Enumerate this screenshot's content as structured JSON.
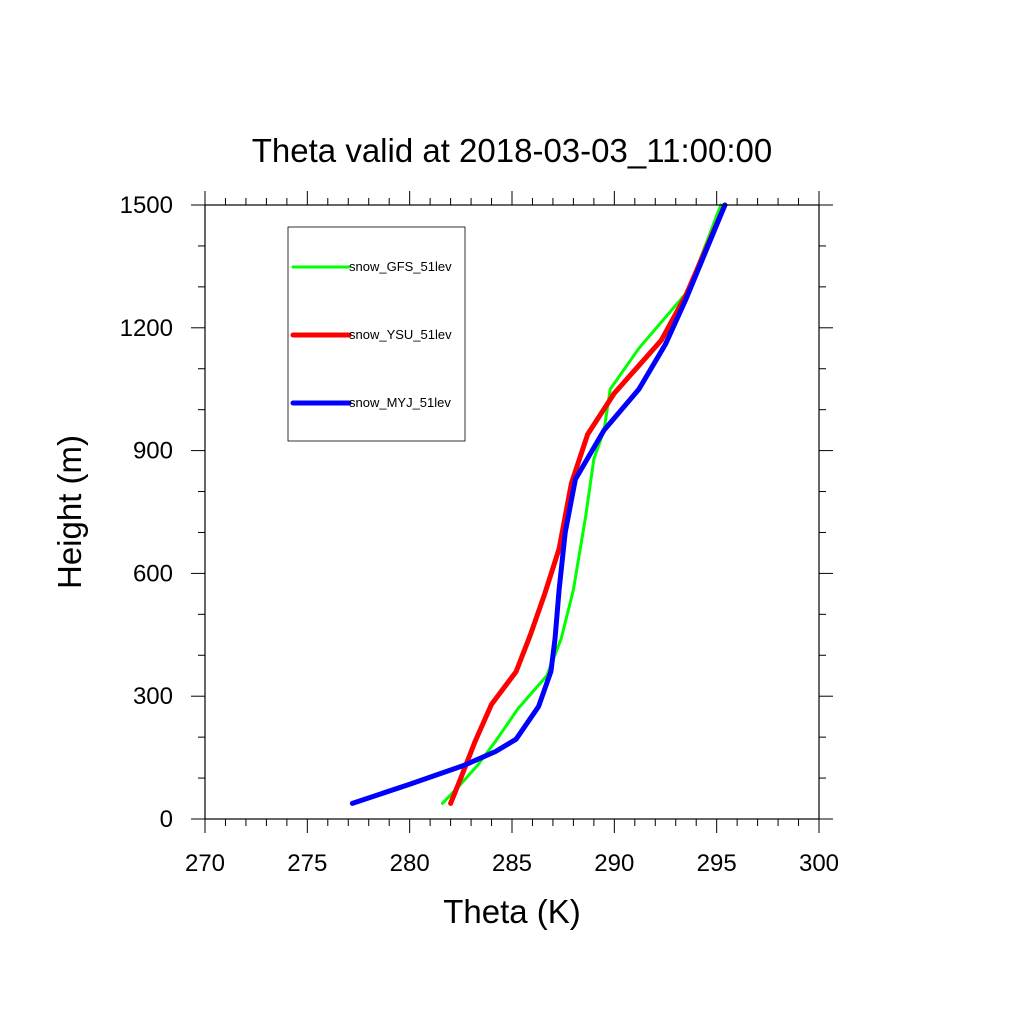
{
  "chart_data": {
    "type": "line",
    "title": "Theta valid at 2018-03-03_11:00:00",
    "xlabel": "Theta (K)",
    "ylabel": "Height (m)",
    "xlim": [
      270,
      300
    ],
    "ylim": [
      0,
      1500
    ],
    "x_ticks": [
      "270",
      "275",
      "280",
      "285",
      "290",
      "295",
      "300"
    ],
    "y_ticks": [
      "0",
      "300",
      "600",
      "900",
      "1200",
      "1500"
    ],
    "grid": false,
    "legend_position": "top-left",
    "series": [
      {
        "name": "snow_GFS_51lev",
        "color": "#00ff00",
        "points": [
          [
            281.6,
            38
          ],
          [
            282.4,
            80
          ],
          [
            283.3,
            130
          ],
          [
            284.2,
            190
          ],
          [
            285.3,
            270
          ],
          [
            286.7,
            350
          ],
          [
            287.4,
            440
          ],
          [
            288.0,
            560
          ],
          [
            288.6,
            740
          ],
          [
            289.0,
            880
          ],
          [
            289.5,
            950
          ],
          [
            289.8,
            1050
          ],
          [
            291.2,
            1150
          ],
          [
            293.6,
            1290
          ],
          [
            295.2,
            1500
          ]
        ]
      },
      {
        "name": "snow_YSU_51lev",
        "color": "#ff0000",
        "points": [
          [
            282.0,
            38
          ],
          [
            282.5,
            100
          ],
          [
            283.2,
            190
          ],
          [
            284.0,
            280
          ],
          [
            285.2,
            360
          ],
          [
            285.9,
            450
          ],
          [
            286.6,
            550
          ],
          [
            287.3,
            660
          ],
          [
            287.9,
            820
          ],
          [
            288.7,
            940
          ],
          [
            290.0,
            1040
          ],
          [
            292.3,
            1170
          ],
          [
            293.5,
            1280
          ],
          [
            295.4,
            1500
          ]
        ]
      },
      {
        "name": "snow_MYJ_51lev",
        "color": "#0000ff",
        "points": [
          [
            277.2,
            38
          ],
          [
            280.0,
            85
          ],
          [
            282.6,
            130
          ],
          [
            284.2,
            165
          ],
          [
            285.2,
            195
          ],
          [
            286.3,
            275
          ],
          [
            286.9,
            360
          ],
          [
            287.1,
            440
          ],
          [
            287.3,
            560
          ],
          [
            287.6,
            700
          ],
          [
            288.1,
            830
          ],
          [
            289.5,
            950
          ],
          [
            291.2,
            1050
          ],
          [
            292.5,
            1160
          ],
          [
            293.5,
            1270
          ],
          [
            295.4,
            1500
          ]
        ]
      }
    ]
  }
}
